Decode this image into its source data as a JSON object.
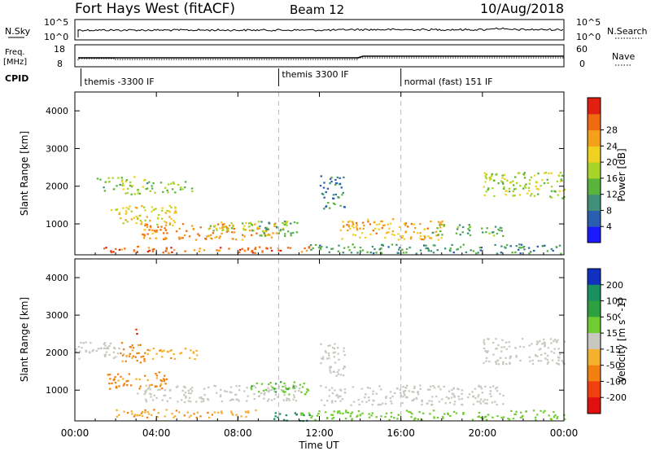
{
  "header": {
    "station": "Fort Hays West (fitACF)",
    "beam": "Beam 12",
    "date": "10/Aug/2018"
  },
  "summary": {
    "nsky_label": "N.Sky",
    "nsky_ticks": [
      "10^5",
      "10^0"
    ],
    "nsearch_label": "N.Search",
    "nsearch_ticks": [
      "10^5",
      "10^0"
    ],
    "freq_label": "Freq.",
    "freq_unit": "[MHz]",
    "freq_ticks": [
      "18",
      "8"
    ],
    "nave_label": "Nave",
    "nave_ticks": [
      "60",
      "0"
    ],
    "cpid_label": "CPID",
    "cpid_segments": [
      {
        "label": "themis -3300 IF",
        "start_h": 0.3,
        "end_h": 10.0
      },
      {
        "label": "themis 3300 IF",
        "start_h": 10.0,
        "end_h": 16.0
      },
      {
        "label": "normal (fast) 151 IF",
        "start_h": 16.0,
        "end_h": 24.0
      }
    ]
  },
  "chart_data": [
    {
      "type": "heatmap",
      "title": "",
      "xlabel": "Time UT",
      "ylabel": "Slant Range [km]",
      "xlim": [
        0,
        24
      ],
      "ylim": [
        180,
        4500
      ],
      "xticks": [
        "00:00",
        "04:00",
        "08:00",
        "12:00",
        "16:00",
        "20:00",
        "00:00"
      ],
      "yticks": [
        1000,
        2000,
        3000,
        4000
      ],
      "colorbar": {
        "label": "Power [dB]",
        "ticks": [
          4,
          8,
          12,
          16,
          20,
          24,
          28
        ],
        "colors": [
          "#1a1aff",
          "#2a5fb0",
          "#3f8f7a",
          "#59b43b",
          "#a8d428",
          "#f0d020",
          "#f5a01a",
          "#f06a10",
          "#e02010"
        ]
      },
      "regions": [
        {
          "t": [
            1.0,
            2.3
          ],
          "r": [
            1900,
            2250
          ],
          "level": 14
        },
        {
          "t": [
            2.2,
            3.5
          ],
          "r": [
            1800,
            2300
          ],
          "level": 17
        },
        {
          "t": [
            3.5,
            5.8
          ],
          "r": [
            1850,
            2150
          ],
          "level": 14
        },
        {
          "t": [
            1.5,
            5.0
          ],
          "r": [
            1000,
            1500
          ],
          "level": 19
        },
        {
          "t": [
            3.2,
            10.0
          ],
          "r": [
            600,
            1050
          ],
          "level": 24
        },
        {
          "t": [
            6.5,
            10.5
          ],
          "r": [
            820,
            1100
          ],
          "level": 16
        },
        {
          "t": [
            9.0,
            11.0
          ],
          "r": [
            700,
            1100
          ],
          "level": 11
        },
        {
          "t": [
            1.0,
            11.5
          ],
          "r": [
            250,
            420
          ],
          "level": 26
        },
        {
          "t": [
            11.5,
            24.0
          ],
          "r": [
            230,
            480
          ],
          "level": 10
        },
        {
          "t": [
            13.0,
            18.0
          ],
          "r": [
            600,
            1150
          ],
          "level": 22
        },
        {
          "t": [
            12.0,
            13.2
          ],
          "r": [
            1400,
            2300
          ],
          "level": 8
        },
        {
          "t": [
            17.5,
            21.0
          ],
          "r": [
            700,
            1000
          ],
          "level": 11
        },
        {
          "t": [
            20.0,
            24.0
          ],
          "r": [
            1700,
            2400
          ],
          "level": 15
        }
      ]
    },
    {
      "type": "heatmap",
      "title": "",
      "xlabel": "Time UT",
      "ylabel": "Slant Range [km]",
      "xlim": [
        0,
        24
      ],
      "ylim": [
        180,
        4500
      ],
      "xticks": [
        "00:00",
        "04:00",
        "08:00",
        "12:00",
        "16:00",
        "20:00",
        "00:00"
      ],
      "yticks": [
        1000,
        2000,
        3000,
        4000
      ],
      "colorbar": {
        "label": "Velocity [m s^-1]",
        "ticks": [
          200,
          100,
          50,
          15,
          -15,
          -50,
          -100,
          -200
        ],
        "colors": [
          "#1030c0",
          "#1a8f5f",
          "#2ea040",
          "#70cc30",
          "#c8c8c0",
          "#f5b030",
          "#f08010",
          "#f04010",
          "#e01010"
        ]
      },
      "regions": [
        {
          "t": [
            0.0,
            2.5
          ],
          "r": [
            1850,
            2300
          ],
          "value": 0
        },
        {
          "t": [
            2.2,
            3.4
          ],
          "r": [
            1700,
            2300
          ],
          "value": -60
        },
        {
          "t": [
            2.9,
            3.1
          ],
          "r": [
            2450,
            2700
          ],
          "value": -200
        },
        {
          "t": [
            3.5,
            6.0
          ],
          "r": [
            1850,
            2150
          ],
          "value": -40
        },
        {
          "t": [
            1.5,
            4.5
          ],
          "r": [
            1050,
            1500
          ],
          "value": -60
        },
        {
          "t": [
            3.0,
            11.0
          ],
          "r": [
            700,
            1150
          ],
          "value": 0
        },
        {
          "t": [
            8.5,
            11.5
          ],
          "r": [
            900,
            1250
          ],
          "value": 40
        },
        {
          "t": [
            2.0,
            9.0
          ],
          "r": [
            280,
            500
          ],
          "value": -40
        },
        {
          "t": [
            9.5,
            11.5
          ],
          "r": [
            200,
            420
          ],
          "value": 150
        },
        {
          "t": [
            11.0,
            24.0
          ],
          "r": [
            230,
            480
          ],
          "value": 30
        },
        {
          "t": [
            12.0,
            21.0
          ],
          "r": [
            620,
            1150
          ],
          "value": 0
        },
        {
          "t": [
            12.0,
            13.2
          ],
          "r": [
            1400,
            2300
          ],
          "value": 0
        },
        {
          "t": [
            20.0,
            24.0
          ],
          "r": [
            1700,
            2400
          ],
          "value": 0
        }
      ]
    }
  ]
}
